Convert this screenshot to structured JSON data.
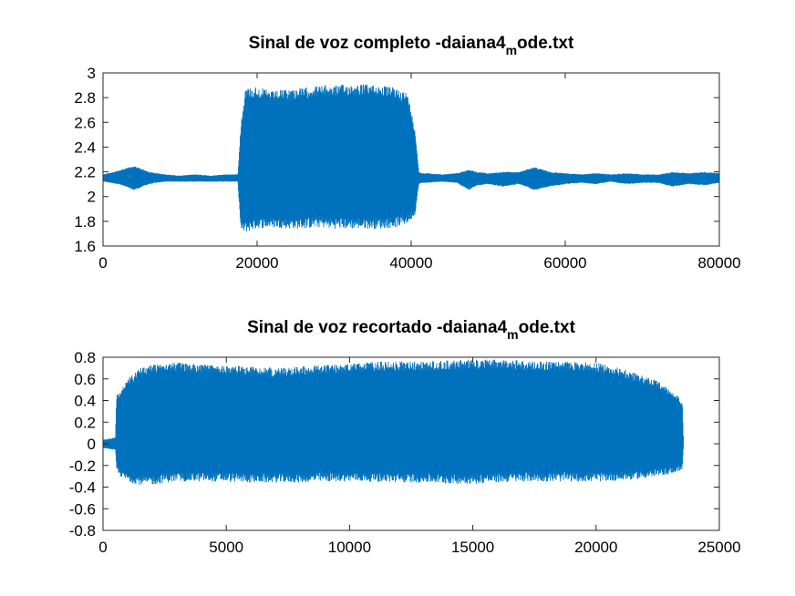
{
  "chart_data": [
    {
      "type": "line",
      "title_main": "Sinal de voz completo -daiana4",
      "title_sub": "m",
      "title_tail": "ode.txt",
      "xlim": [
        0,
        80000
      ],
      "ylim": [
        1.6,
        3.0
      ],
      "xticks": [
        "0",
        "20000",
        "40000",
        "60000",
        "80000"
      ],
      "xtick_values": [
        0,
        20000,
        40000,
        60000,
        80000
      ],
      "yticks": [
        "1.6",
        "1.8",
        "2",
        "2.2",
        "2.4",
        "2.6",
        "2.8",
        "3"
      ],
      "ytick_values": [
        1.6,
        1.8,
        2.0,
        2.2,
        2.4,
        2.6,
        2.8,
        3.0
      ],
      "grid": false,
      "color": "#0072BD",
      "series": [
        {
          "envelope": {
            "x": [
              0,
              2000,
              4000,
              6000,
              8000,
              10000,
              12000,
              14000,
              16000,
              17500,
              17900,
              18500,
              20000,
              22000,
              24000,
              26000,
              28000,
              30000,
              32000,
              34000,
              36000,
              38000,
              39500,
              40500,
              41000,
              41500,
              42000,
              44000,
              46000,
              47500,
              48500,
              50000,
              52000,
              54000,
              56000,
              58000,
              60000,
              62000,
              64000,
              66000,
              68000,
              70000,
              72000,
              74000,
              76000,
              78000,
              80000
            ],
            "upper": [
              2.18,
              2.21,
              2.25,
              2.2,
              2.18,
              2.17,
              2.18,
              2.17,
              2.18,
              2.18,
              2.6,
              2.88,
              2.89,
              2.85,
              2.87,
              2.88,
              2.9,
              2.9,
              2.91,
              2.91,
              2.9,
              2.88,
              2.84,
              2.55,
              2.2,
              2.19,
              2.19,
              2.18,
              2.19,
              2.22,
              2.2,
              2.19,
              2.2,
              2.2,
              2.24,
              2.2,
              2.19,
              2.18,
              2.19,
              2.18,
              2.19,
              2.18,
              2.18,
              2.2,
              2.19,
              2.2,
              2.19
            ],
            "lower": [
              2.12,
              2.1,
              2.05,
              2.1,
              2.12,
              2.12,
              2.12,
              2.12,
              2.12,
              2.12,
              1.72,
              1.71,
              1.74,
              1.75,
              1.74,
              1.74,
              1.75,
              1.74,
              1.74,
              1.74,
              1.74,
              1.75,
              1.78,
              1.85,
              2.1,
              2.11,
              2.11,
              2.12,
              2.11,
              2.05,
              2.09,
              2.1,
              2.08,
              2.1,
              2.05,
              2.08,
              2.1,
              2.11,
              2.1,
              2.12,
              2.1,
              2.11,
              2.11,
              2.08,
              2.1,
              2.09,
              2.11
            ]
          }
        }
      ]
    },
    {
      "type": "line",
      "title_main": "Sinal de voz recortado -daiana4",
      "title_sub": "m",
      "title_tail": "ode.txt",
      "xlim": [
        0,
        25000
      ],
      "ylim": [
        -0.8,
        0.8
      ],
      "xticks": [
        "0",
        "5000",
        "10000",
        "15000",
        "20000",
        "25000"
      ],
      "xtick_values": [
        0,
        5000,
        10000,
        15000,
        20000,
        25000
      ],
      "yticks": [
        "-0.8",
        "-0.6",
        "-0.4",
        "-0.2",
        "0",
        "0.2",
        "0.4",
        "0.6",
        "0.8"
      ],
      "ytick_values": [
        -0.8,
        -0.6,
        -0.4,
        -0.2,
        0,
        0.2,
        0.4,
        0.6,
        0.8
      ],
      "grid": false,
      "color": "#0072BD",
      "series": [
        {
          "envelope": {
            "x": [
              0,
              300,
              500,
              550,
              700,
              1000,
              1500,
              2000,
              2500,
              3000,
              4000,
              5000,
              6000,
              7000,
              8000,
              9000,
              10000,
              11000,
              12000,
              13000,
              14000,
              15000,
              16000,
              17000,
              18000,
              19000,
              20000,
              21000,
              22000,
              22500,
              23000,
              23300,
              23500,
              23550
            ],
            "upper": [
              0.04,
              0.05,
              0.06,
              0.45,
              0.5,
              0.6,
              0.7,
              0.74,
              0.76,
              0.75,
              0.74,
              0.72,
              0.72,
              0.7,
              0.72,
              0.73,
              0.74,
              0.76,
              0.76,
              0.76,
              0.77,
              0.78,
              0.78,
              0.77,
              0.76,
              0.76,
              0.75,
              0.7,
              0.62,
              0.58,
              0.5,
              0.45,
              0.38,
              0.0
            ],
            "lower": [
              -0.04,
              -0.05,
              -0.06,
              -0.25,
              -0.3,
              -0.35,
              -0.38,
              -0.38,
              -0.36,
              -0.35,
              -0.35,
              -0.35,
              -0.36,
              -0.36,
              -0.36,
              -0.35,
              -0.35,
              -0.35,
              -0.36,
              -0.36,
              -0.37,
              -0.37,
              -0.36,
              -0.35,
              -0.35,
              -0.35,
              -0.35,
              -0.34,
              -0.32,
              -0.3,
              -0.28,
              -0.26,
              -0.24,
              0.0
            ]
          }
        }
      ]
    }
  ]
}
